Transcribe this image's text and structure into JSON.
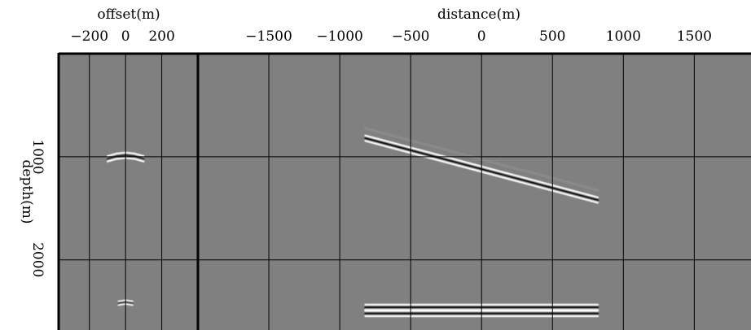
{
  "chart_data": [
    {
      "type": "heatmap",
      "title": "",
      "xlabel": "offset(m)",
      "ylabel": "depth(m)",
      "xticks": [
        "-200",
        "0",
        "200"
      ],
      "xtick_values": [
        -200,
        0,
        200
      ],
      "xlim": [
        -370,
        400
      ],
      "yticks": [
        "1000",
        "2000"
      ],
      "ytick_values": [
        1000,
        2000
      ],
      "ylim": [
        0,
        2680
      ],
      "grid": true,
      "events": [
        {
          "kind": "curved",
          "x": [
            -100,
            -50,
            0,
            50,
            100
          ],
          "y": [
            1020,
            995,
            985,
            995,
            1020
          ]
        },
        {
          "kind": "focused",
          "x": [
            -40,
            0,
            40
          ],
          "y": [
            2420,
            2410,
            2420
          ]
        }
      ]
    },
    {
      "type": "heatmap",
      "title": "",
      "xlabel": "distance(m)",
      "ylabel": "depth(m)",
      "xticks": [
        "-1500",
        "-1000",
        "-500",
        "0",
        "500",
        "1000",
        "1500"
      ],
      "xtick_values": [
        -1500,
        -1000,
        -500,
        0,
        500,
        1000,
        1500
      ],
      "xlim": [
        -2000,
        1900
      ],
      "yticks": [
        "1000",
        "2000"
      ],
      "ytick_values": [
        1000,
        2000
      ],
      "ylim": [
        0,
        2680
      ],
      "grid": true,
      "events": [
        {
          "kind": "dipping",
          "x": [
            -820,
            820
          ],
          "y": [
            820,
            1420
          ]
        },
        {
          "kind": "flat",
          "x": [
            -820,
            820
          ],
          "y": [
            2460,
            2460
          ]
        },
        {
          "kind": "flat",
          "x": [
            -820,
            820
          ],
          "y": [
            2520,
            2520
          ]
        }
      ]
    }
  ]
}
